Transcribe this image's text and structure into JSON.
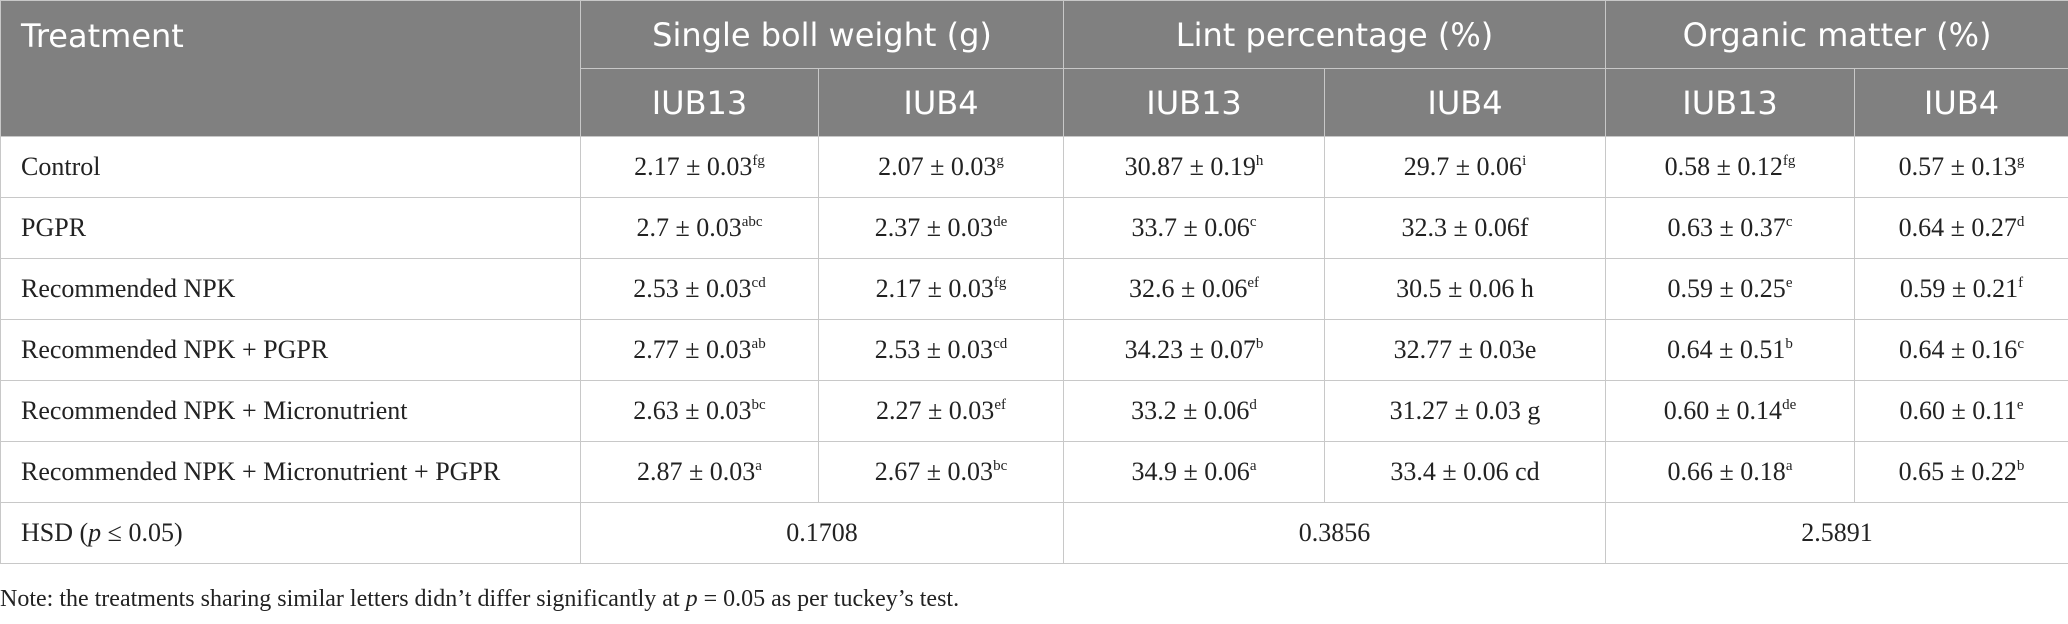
{
  "table": {
    "header": {
      "treatment": "Treatment",
      "groups": [
        "Single boll weight (g)",
        "Lint percentage (%)",
        "Organic matter (%)"
      ],
      "subcolumns": [
        "IUB13",
        "IUB4",
        "IUB13",
        "IUB4",
        "IUB13",
        "IUB4"
      ]
    },
    "rows": [
      {
        "treatment": "Control",
        "cells": [
          {
            "value": "2.17 ± 0.03",
            "letters": "fg"
          },
          {
            "value": "2.07 ± 0.03",
            "letters": "g"
          },
          {
            "value": "30.87 ± 0.19",
            "letters": "h"
          },
          {
            "value": "29.7 ± 0.06",
            "letters": "i"
          },
          {
            "value": "0.58 ± 0.12",
            "letters": "fg"
          },
          {
            "value": "0.57 ± 0.13",
            "letters": "g"
          }
        ]
      },
      {
        "treatment": "PGPR",
        "cells": [
          {
            "value": "2.7 ± 0.03",
            "letters": "abc"
          },
          {
            "value": "2.37 ± 0.03",
            "letters": "de"
          },
          {
            "value": "33.7 ± 0.06",
            "letters": "c"
          },
          {
            "value": "32.3 ± 0.06f"
          },
          {
            "value": "0.63 ± 0.37",
            "letters": "c"
          },
          {
            "value": "0.64 ± 0.27",
            "letters": "d"
          }
        ]
      },
      {
        "treatment": "Recommended NPK",
        "cells": [
          {
            "value": "2.53 ± 0.03",
            "letters": "cd"
          },
          {
            "value": "2.17 ± 0.03",
            "letters": "fg"
          },
          {
            "value": "32.6 ± 0.06",
            "letters": "ef"
          },
          {
            "value": "30.5 ± 0.06 h"
          },
          {
            "value": "0.59 ± 0.25",
            "letters": "e"
          },
          {
            "value": "0.59 ± 0.21",
            "letters": "f"
          }
        ]
      },
      {
        "treatment": "Recommended NPK + PGPR",
        "cells": [
          {
            "value": "2.77 ± 0.03",
            "letters": "ab"
          },
          {
            "value": "2.53 ± 0.03",
            "letters": "cd"
          },
          {
            "value": "34.23 ± 0.07",
            "letters": "b"
          },
          {
            "value": "32.77 ± 0.03e"
          },
          {
            "value": "0.64 ± 0.51",
            "letters": "b"
          },
          {
            "value": "0.64 ± 0.16",
            "letters": "c"
          }
        ]
      },
      {
        "treatment": "Recommended NPK + Micronutrient",
        "cells": [
          {
            "value": "2.63 ± 0.03",
            "letters": "bc"
          },
          {
            "value": "2.27 ± 0.03",
            "letters": "ef"
          },
          {
            "value": "33.2 ± 0.06",
            "letters": "d"
          },
          {
            "value": "31.27 ± 0.03 g"
          },
          {
            "value": "0.60 ± 0.14",
            "letters": "de"
          },
          {
            "value": "0.60 ± 0.11",
            "letters": "e"
          }
        ]
      },
      {
        "treatment": "Recommended NPK + Micronutrient + PGPR",
        "cells": [
          {
            "value": "2.87 ± 0.03",
            "letters": "a"
          },
          {
            "value": "2.67 ± 0.03",
            "letters": "bc"
          },
          {
            "value": "34.9 ± 0.06",
            "letters": "a"
          },
          {
            "value": "33.4 ± 0.06 cd"
          },
          {
            "value": "0.66 ± 0.18",
            "letters": "a"
          },
          {
            "value": "0.65 ± 0.22",
            "letters": "b"
          }
        ]
      }
    ],
    "hsd": {
      "label": [
        "HSD (",
        "p",
        " ≤ 0.05)"
      ],
      "values": [
        "0.1708",
        "0.3856",
        "2.5891"
      ]
    }
  },
  "note": [
    "Note: the treatments sharing similar letters didn’t differ significantly at ",
    "p",
    " = 0.05 as per tuckey’s test."
  ]
}
